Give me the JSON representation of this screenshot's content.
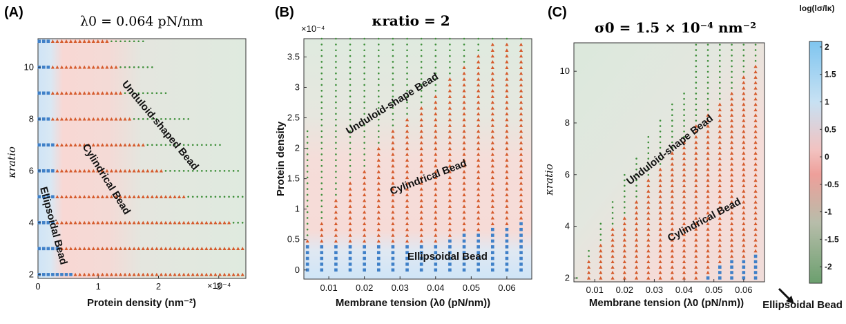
{
  "colors": {
    "ellipsoidal": "#3f80c8",
    "cylindrical": "#d55a2b",
    "unduloid": "#3e8f3a",
    "bg_green": "#dfeadf",
    "bg_pink": "#f6dcd8",
    "bg_blue": "#d3e6f5"
  },
  "chart_data": [
    {
      "type": "scatter",
      "panel_label": "(A)",
      "title": "λ0 = 0.064 pN/nm",
      "xlabel": "Protein density (nm⁻²)",
      "ylabel": "κratio",
      "xlim": [
        0,
        0.000345
      ],
      "ylim": [
        1.85,
        11.1
      ],
      "x_ticks": [
        "0",
        "1",
        "2",
        "3"
      ],
      "x_exponent": "×10⁻⁴",
      "y_ticks": [
        "2",
        "4",
        "6",
        "8",
        "10"
      ],
      "rows_kappa": [
        2,
        3,
        4,
        5,
        6,
        7,
        8,
        9,
        10,
        11
      ],
      "ellipsoidal_max": [
        6e-05,
        3.5e-05,
        3e-05,
        2.8e-05,
        2.6e-05,
        2.5e-05,
        2.4e-05,
        2.2e-05,
        2e-05,
        1.8e-05
      ],
      "cylindrical_max": [
        0.000345,
        0.000345,
        0.00032,
        0.000245,
        0.000205,
        0.000175,
        0.000155,
        0.00014,
        0.00013,
        0.000122
      ],
      "unduloid_max": [
        0.000345,
        0.000345,
        0.000345,
        0.000345,
        0.000335,
        0.000305,
        0.00025,
        0.000215,
        0.000195,
        0.000175
      ],
      "region_labels": [
        "Unduloid-shaped Bead",
        "Cylindrical Bead",
        "Ellipsoidal Bead"
      ]
    },
    {
      "type": "scatter",
      "panel_label": "(B)",
      "title": "κratio = 2",
      "xlabel": "Membrane tension (λ0 (pN/nm))",
      "ylabel": "Protein density",
      "xlim": [
        0.003,
        0.067
      ],
      "ylim": [
        -1.5e-05,
        0.00038
      ],
      "x_ticks": [
        "0.01",
        "0.02",
        "0.03",
        "0.04",
        "0.05",
        "0.06"
      ],
      "y_ticks": [
        "0",
        "0.5",
        "1",
        "1.5",
        "2",
        "2.5",
        "3",
        "3.5"
      ],
      "y_exponent": "×10⁻⁴",
      "columns_lambda": [
        0.004,
        0.008,
        0.012,
        0.016,
        0.02,
        0.024,
        0.028,
        0.032,
        0.036,
        0.04,
        0.044,
        0.048,
        0.052,
        0.056,
        0.06,
        0.064
      ],
      "ellipsoidal_max": [
        4e-05,
        4e-05,
        4e-05,
        4e-05,
        4e-05,
        4e-05,
        4e-05,
        4e-05,
        4e-05,
        4.5e-05,
        5.5e-05,
        6e-05,
        6.5e-05,
        7e-05,
        7.5e-05,
        8.5e-05
      ],
      "cylindrical_max": [
        5e-05,
        8e-05,
        0.00012,
        0.000145,
        0.00017,
        0.0002,
        0.00023,
        0.00025,
        0.00027,
        0.00029,
        0.000315,
        0.00034,
        0.00036,
        0.00038,
        0.00038,
        0.00038
      ],
      "unduloid_max": [
        0.00023,
        0.00038,
        0.00038,
        0.00038,
        0.00038,
        0.00038,
        0.00038,
        0.00038,
        0.00038,
        0.00038,
        0.00038,
        0.00038,
        0.00038,
        0.00038,
        0.00038,
        0.00038
      ],
      "region_labels": [
        "Unduloid-shape Bead",
        "Cylindrical Bead",
        "Ellipsoidal Bead"
      ]
    },
    {
      "type": "scatter",
      "panel_label": "(C)",
      "title": "σ0 = 1.5 × 10⁻⁴ nm⁻²",
      "xlabel": "Membrane tension (λ0 (pN/nm))",
      "ylabel": "κratio",
      "xlim": [
        0.003,
        0.067
      ],
      "ylim": [
        1.85,
        11.1
      ],
      "x_ticks": [
        "0.01",
        "0.02",
        "0.03",
        "0.04",
        "0.05",
        "0.06"
      ],
      "y_ticks": [
        "2",
        "4",
        "6",
        "8",
        "10"
      ],
      "columns_lambda": [
        0.004,
        0.008,
        0.012,
        0.016,
        0.02,
        0.024,
        0.028,
        0.032,
        0.036,
        0.04,
        0.044,
        0.048,
        0.052,
        0.056,
        0.06,
        0.064
      ],
      "ellipsoidal_max": [
        0,
        0,
        0,
        0,
        0,
        0,
        0,
        0,
        0,
        0,
        0,
        2.2,
        2.5,
        2.7,
        2.8,
        2.9
      ],
      "cylindrical_max": [
        0,
        2.7,
        3.4,
        4.0,
        4.5,
        5.1,
        5.8,
        6.3,
        6.9,
        7.4,
        7.9,
        8.3,
        8.9,
        9.3,
        9.8,
        10.3
      ],
      "unduloid_max": [
        2.2,
        3.2,
        4.2,
        5.0,
        6.0,
        6.8,
        7.5,
        8.2,
        8.8,
        9.3,
        11.1,
        11.1,
        11.1,
        11.1,
        11.1,
        11.1
      ],
      "region_labels": [
        "Unduloid-shape Bead",
        "Cylindrical Bead",
        "Ellipsoidal Bead"
      ],
      "colorbar": {
        "label": "log(lσ/lκ)",
        "range": [
          -2.3,
          2.1
        ],
        "ticks": [
          "2",
          "1.5",
          "1",
          "0.5",
          "0",
          "-0.5",
          "-1",
          "-1.5",
          "-2"
        ]
      }
    }
  ]
}
